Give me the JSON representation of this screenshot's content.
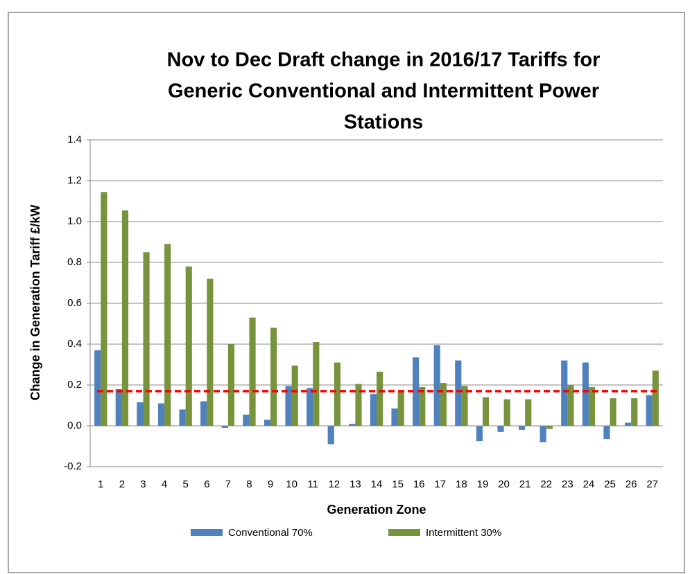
{
  "chart_data": {
    "type": "bar",
    "title": [
      "Nov to Dec Draft change in 2016/17 Tariffs for",
      "Generic Conventional and Intermittent Power",
      "Stations"
    ],
    "x_label": "Generation Zone",
    "y_label": "Change  in Generation Tariff £/kW",
    "categories": [
      "1",
      "2",
      "3",
      "4",
      "5",
      "6",
      "7",
      "8",
      "9",
      "10",
      "11",
      "12",
      "13",
      "14",
      "15",
      "16",
      "17",
      "18",
      "19",
      "20",
      "21",
      "22",
      "23",
      "24",
      "25",
      "26",
      "27"
    ],
    "series": [
      {
        "name": "Conventional 70%",
        "color": "#4f81bd",
        "values": [
          0.37,
          0.18,
          0.115,
          0.11,
          0.08,
          0.12,
          -0.01,
          0.055,
          0.03,
          0.195,
          0.185,
          -0.09,
          0.01,
          0.155,
          0.085,
          0.335,
          0.395,
          0.32,
          -0.075,
          -0.03,
          -0.02,
          -0.08,
          0.32,
          0.31,
          -0.065,
          0.015,
          0.15
        ]
      },
      {
        "name": "Intermittent 30%",
        "color": "#77933c",
        "values": [
          1.145,
          1.055,
          0.85,
          0.89,
          0.78,
          0.72,
          0.4,
          0.53,
          0.48,
          0.295,
          0.41,
          0.31,
          0.205,
          0.265,
          0.165,
          0.19,
          0.21,
          0.195,
          0.14,
          0.13,
          0.13,
          -0.015,
          0.2,
          0.19,
          0.135,
          0.135,
          0.27
        ]
      }
    ],
    "reference_line": {
      "value": 0.17,
      "color": "#ff0000"
    },
    "ylim": [
      -0.2,
      1.4
    ],
    "yticks": [
      -0.2,
      {
        "value": 0,
        "label": "0.0"
      },
      0.2,
      0.4,
      0.6,
      0.8,
      {
        "value": 1,
        "label": "1.0"
      },
      1.2,
      1.4
    ],
    "grid": true,
    "legend": "bottom"
  }
}
